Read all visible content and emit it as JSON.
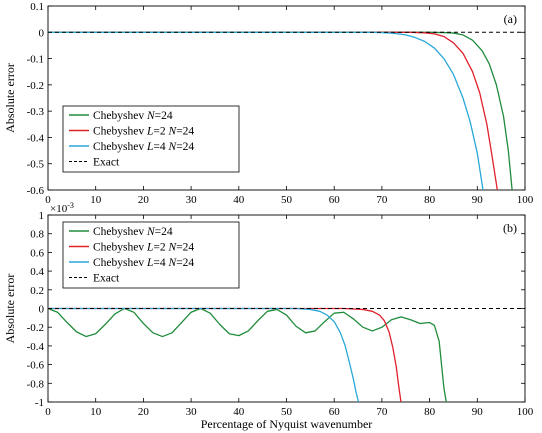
{
  "chart_data": [
    {
      "type": "line",
      "panel_label": "(a)",
      "xlabel": "",
      "ylabel": "Absolute error",
      "xlim": [
        0,
        100
      ],
      "ylim": [
        -0.6,
        0.1
      ],
      "xticks": [
        0,
        10,
        20,
        30,
        40,
        50,
        60,
        70,
        80,
        90,
        100
      ],
      "yticks": [
        0.1,
        0,
        -0.1,
        -0.2,
        -0.3,
        -0.4,
        -0.5,
        -0.6
      ],
      "ytick_labels": [
        "0.1",
        "0",
        "-0.1",
        "-0.2",
        "-0.3",
        "-0.4",
        "-0.5",
        "-0.6"
      ],
      "legend_position": "lower-left",
      "legend": [
        {
          "text": "Chebyshev N=24",
          "color": "#1f8c3b",
          "style": "solid"
        },
        {
          "text": "Chebyshev L=2 N=24",
          "color": "#e0202a",
          "style": "solid"
        },
        {
          "text": "Chebyshev L=4 N=24",
          "color": "#29a8d9",
          "style": "solid"
        },
        {
          "text": "Exact",
          "color": "#000000",
          "style": "dashed"
        }
      ],
      "series": [
        {
          "color": "#1f8c3b",
          "x": [
            0,
            80,
            83,
            85,
            87,
            89,
            91,
            92.5,
            94,
            95.5,
            96.5,
            97.3
          ],
          "y": [
            0,
            0,
            -0.001,
            -0.003,
            -0.01,
            -0.03,
            -0.07,
            -0.12,
            -0.2,
            -0.32,
            -0.45,
            -0.6
          ]
        },
        {
          "color": "#e0202a",
          "x": [
            0,
            76,
            79,
            81,
            83,
            85,
            87,
            89,
            90.5,
            92,
            93,
            94.2
          ],
          "y": [
            0,
            0,
            -0.002,
            -0.006,
            -0.016,
            -0.04,
            -0.08,
            -0.15,
            -0.23,
            -0.35,
            -0.46,
            -0.6
          ]
        },
        {
          "color": "#29a8d9",
          "x": [
            0,
            68,
            71,
            73,
            75,
            77,
            79,
            81,
            83,
            85,
            87,
            88.5,
            90,
            91.2
          ],
          "y": [
            0,
            0,
            -0.002,
            -0.005,
            -0.01,
            -0.02,
            -0.035,
            -0.06,
            -0.1,
            -0.16,
            -0.25,
            -0.34,
            -0.46,
            -0.6
          ]
        },
        {
          "color": "#000000",
          "style": "dashed",
          "x": [
            0,
            100
          ],
          "y": [
            0,
            0
          ]
        }
      ]
    },
    {
      "type": "line",
      "panel_label": "(b)",
      "xlabel": "Percentage of Nyquist wavenumber",
      "ylabel": "Absolute error",
      "scale_note": "×10",
      "scale_exp": "-3",
      "xlim": [
        0,
        100
      ],
      "ylim": [
        -1,
        1
      ],
      "xticks": [
        0,
        10,
        20,
        30,
        40,
        50,
        60,
        70,
        80,
        90,
        100
      ],
      "yticks": [
        1,
        0.8,
        0.6,
        0.4,
        0.2,
        0,
        -0.2,
        -0.4,
        -0.6,
        -0.8,
        -1
      ],
      "ytick_labels": [
        "1",
        "0.8",
        "0.6",
        "0.4",
        "0.2",
        "0",
        "-0.2",
        "-0.4",
        "-0.6",
        "-0.8",
        "-1"
      ],
      "legend_position": "upper-left",
      "legend": [
        {
          "text": "Chebyshev N=24",
          "color": "#1f8c3b",
          "style": "solid"
        },
        {
          "text": "Chebyshev L=2 N=24",
          "color": "#e0202a",
          "style": "solid"
        },
        {
          "text": "Chebyshev L=4 N=24",
          "color": "#29a8d9",
          "style": "solid"
        },
        {
          "text": "Exact",
          "color": "#000000",
          "style": "dashed"
        }
      ],
      "series": [
        {
          "color": "#1f8c3b",
          "x": [
            0,
            2,
            4,
            6,
            8,
            10,
            12,
            14,
            16,
            18,
            20,
            22,
            24,
            26,
            28,
            30,
            32,
            34,
            36,
            38,
            40,
            42,
            44,
            46,
            48,
            50,
            52,
            54,
            56,
            58,
            60,
            62,
            64,
            66,
            68,
            70,
            72,
            74,
            76,
            78,
            80,
            81,
            82,
            82.5,
            83,
            83.5
          ],
          "y": [
            0,
            -0.04,
            -0.15,
            -0.25,
            -0.3,
            -0.27,
            -0.17,
            -0.06,
            0,
            -0.04,
            -0.16,
            -0.26,
            -0.3,
            -0.26,
            -0.15,
            -0.04,
            0,
            -0.05,
            -0.17,
            -0.27,
            -0.29,
            -0.24,
            -0.13,
            -0.03,
            -0.01,
            -0.07,
            -0.19,
            -0.26,
            -0.24,
            -0.14,
            -0.05,
            -0.04,
            -0.11,
            -0.2,
            -0.24,
            -0.2,
            -0.12,
            -0.09,
            -0.12,
            -0.16,
            -0.15,
            -0.18,
            -0.35,
            -0.6,
            -0.85,
            -1
          ]
        },
        {
          "color": "#e0202a",
          "x": [
            0,
            62,
            66,
            68,
            69.5,
            70.5,
            71.5,
            72.3,
            73,
            73.5,
            74
          ],
          "y": [
            0,
            0,
            -0.01,
            -0.03,
            -0.07,
            -0.13,
            -0.25,
            -0.42,
            -0.62,
            -0.82,
            -1
          ]
        },
        {
          "color": "#29a8d9",
          "x": [
            0,
            52,
            55,
            57,
            58.5,
            60,
            61.3,
            62.3,
            63.2,
            64,
            64.6,
            65.1
          ],
          "y": [
            0,
            0,
            -0.01,
            -0.03,
            -0.07,
            -0.14,
            -0.26,
            -0.4,
            -0.58,
            -0.75,
            -0.9,
            -1
          ]
        },
        {
          "color": "#000000",
          "style": "dashed",
          "x": [
            0,
            100
          ],
          "y": [
            0,
            0
          ]
        }
      ]
    }
  ]
}
